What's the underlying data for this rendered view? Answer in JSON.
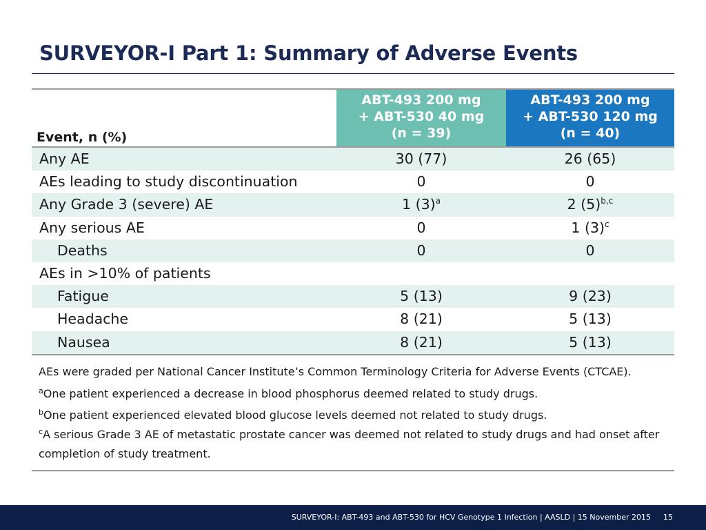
{
  "slide": {
    "title": "SURVEYOR-I Part 1: Summary of Adverse Events"
  },
  "table": {
    "event_header": "Event, n (%)",
    "columns": [
      {
        "line1": "ABT-493 200 mg",
        "line2": "+ ABT-530 40 mg",
        "line3": "(n = 39)",
        "color": "#6dbfb2"
      },
      {
        "line1": "ABT-493 200 mg",
        "line2": "+ ABT-530 120 mg",
        "line3": "(n = 40)",
        "color": "#1b78c0"
      }
    ],
    "rows": [
      {
        "label": "Any AE",
        "v1": "30 (77)",
        "v1_sup": "",
        "v2": "26 (65)",
        "v2_sup": ""
      },
      {
        "label": "AEs leading to study discontinuation",
        "v1": "0",
        "v1_sup": "",
        "v2": "0",
        "v2_sup": ""
      },
      {
        "label": "Any Grade 3 (severe) AE",
        "v1": "1 (3)",
        "v1_sup": "a",
        "v2": "2 (5)",
        "v2_sup": "b,c"
      },
      {
        "label": "Any serious AE",
        "v1": "0",
        "v1_sup": "",
        "v2": "1 (3)",
        "v2_sup": "c"
      },
      {
        "label": "Deaths",
        "v1": "0",
        "v1_sup": "",
        "v2": "0",
        "v2_sup": ""
      },
      {
        "label": "AEs in >10% of patients",
        "v1": "",
        "v1_sup": "",
        "v2": "",
        "v2_sup": ""
      },
      {
        "label": "Fatigue",
        "v1": "5 (13)",
        "v1_sup": "",
        "v2": "9 (23)",
        "v2_sup": ""
      },
      {
        "label": "Headache",
        "v1": "8 (21)",
        "v1_sup": "",
        "v2": "5 (13)",
        "v2_sup": ""
      },
      {
        "label": "Nausea",
        "v1": "8 (21)",
        "v1_sup": "",
        "v2": "5 (13)",
        "v2_sup": ""
      }
    ]
  },
  "notes": {
    "ctcae": "AEs were graded per National Cancer Institute’s Common Terminology Criteria for Adverse Events (CTCAE).",
    "a_marker": "a",
    "a_text": "One patient experienced a decrease in blood phosphorus deemed related to study drugs.",
    "b_marker": "b",
    "b_text": "One patient experienced elevated blood glucose levels deemed not related to study drugs.",
    "c_marker": "c",
    "c_text_line1": "A serious  Grade 3 AE of metastatic prostate cancer was deemed not related to study drugs and had onset after",
    "c_text_line2": "completion of study treatment."
  },
  "footer": {
    "text": "SURVEYOR-I: ABT-493 and ABT-530 for HCV Genotype 1 Infection   | AASLD | 15 November 2015",
    "page": "15"
  },
  "colors": {
    "title": "#1b2b55",
    "footer_bg": "#0e1f47",
    "row_shade": "#e4f2ef"
  }
}
